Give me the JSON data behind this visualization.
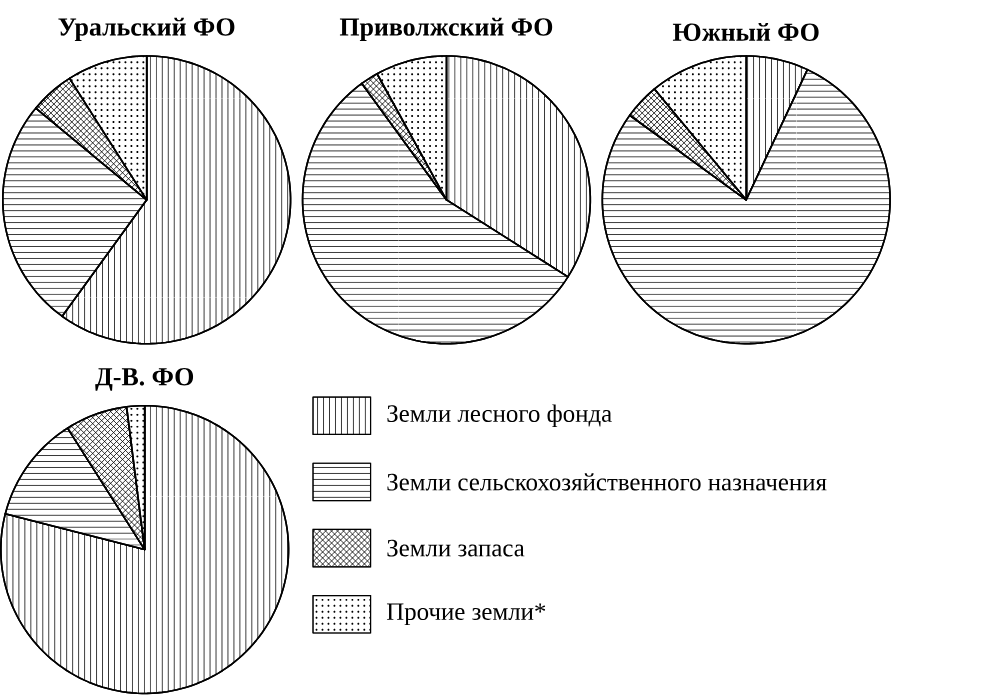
{
  "chart_data": [
    {
      "type": "pie",
      "title": "Уральский ФО",
      "categories": [
        null,
        null,
        null,
        null
      ],
      "values": [
        60,
        26,
        5,
        9
      ]
    },
    {
      "type": "pie",
      "title": "Приволжский ФО",
      "categories": [
        null,
        null,
        null,
        null
      ],
      "values": [
        34,
        56,
        2,
        8
      ]
    },
    {
      "type": "pie",
      "title": "Южный ФО",
      "categories": [
        null,
        null,
        null,
        null
      ],
      "values": [
        7,
        78,
        4,
        11
      ]
    },
    {
      "type": "pie",
      "title": "Д-В. ФО",
      "categories": [
        "Земли лесного фонда",
        "Земли сельскохозяйственного назначения",
        "Земли запаса",
        "Прочие земли*"
      ],
      "values": [
        79,
        12,
        7,
        2
      ],
      "legend": "right"
    }
  ]
}
